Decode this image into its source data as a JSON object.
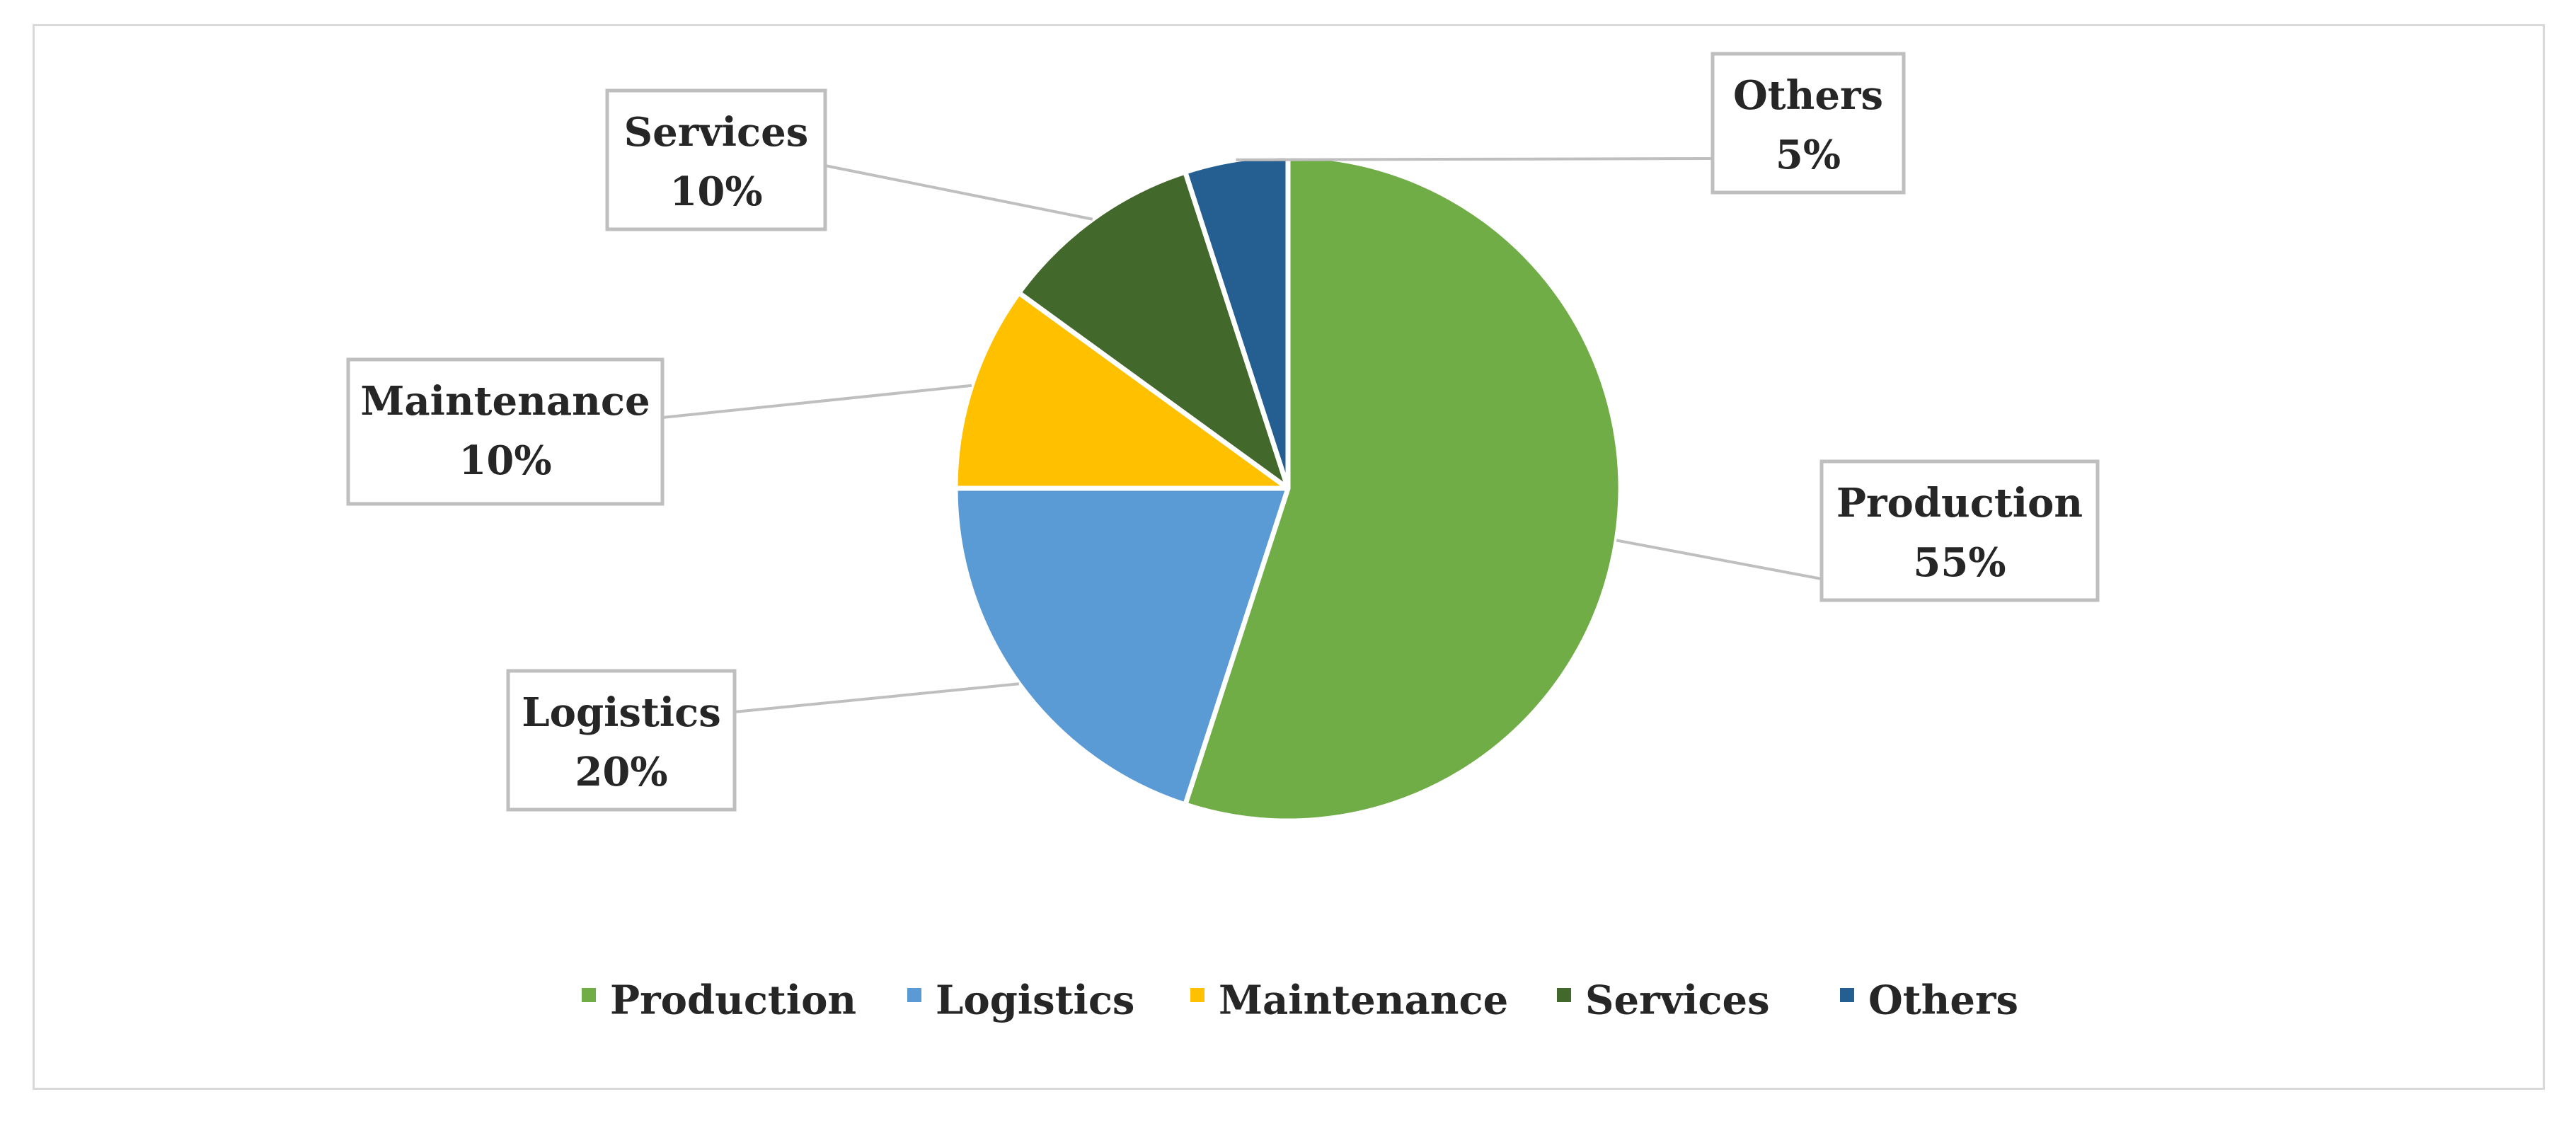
{
  "chart_data": {
    "type": "pie",
    "title": "",
    "slices": [
      {
        "label": "Production",
        "value": 55,
        "value_text": "55%",
        "color": "#70ad47"
      },
      {
        "label": "Logistics",
        "value": 20,
        "value_text": "20%",
        "color": "#5b9bd5"
      },
      {
        "label": "Maintenance",
        "value": 10,
        "value_text": "10%",
        "color": "#ffc000"
      },
      {
        "label": "Services",
        "value": 10,
        "value_text": "10%",
        "color": "#43682b"
      },
      {
        "label": "Others",
        "value": 5,
        "value_text": "5%",
        "color": "#255e91"
      }
    ],
    "legend": {
      "position": "bottom",
      "entries": [
        "Production",
        "Logistics",
        "Maintenance",
        "Services",
        "Others"
      ]
    },
    "data_labels": "callout boxes with category name and percentage"
  }
}
